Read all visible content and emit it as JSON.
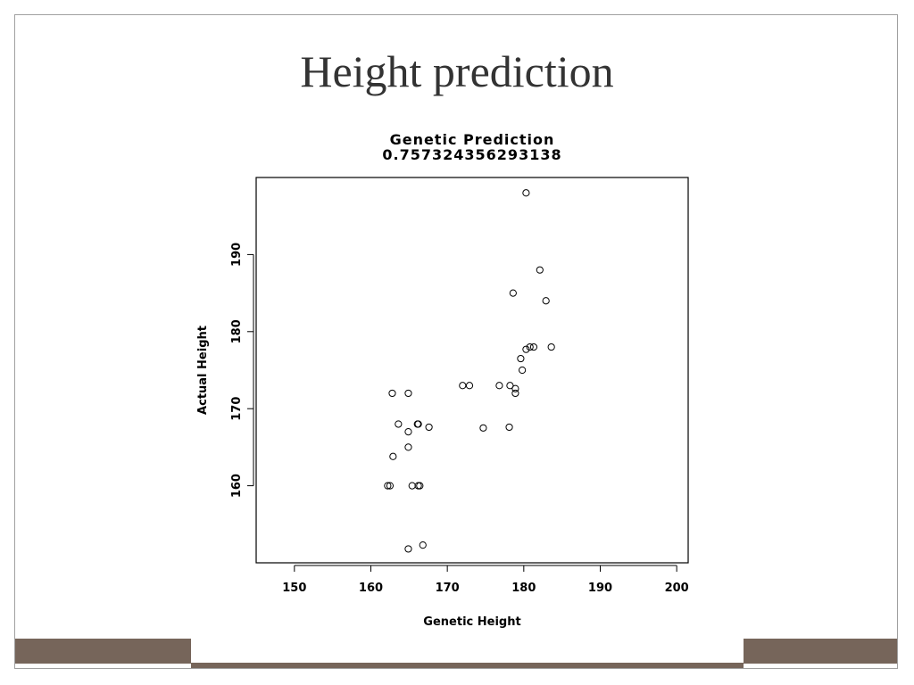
{
  "slide": {
    "title": "Height prediction"
  },
  "chart_data": {
    "type": "scatter",
    "title": "Genetic Prediction",
    "subtitle": "0.757324356293138",
    "xlabel": "Genetic Height",
    "ylabel": "Actual Height",
    "xlim": [
      145,
      201.5
    ],
    "ylim": [
      150,
      200
    ],
    "xticks": [
      150,
      160,
      170,
      180,
      190,
      200
    ],
    "yticks": [
      160,
      170,
      180,
      190
    ],
    "grid": false,
    "series": [
      {
        "points": [
          [
            180.3,
            198
          ],
          [
            182.1,
            188
          ],
          [
            178.6,
            185
          ],
          [
            182.9,
            184
          ],
          [
            183.6,
            178
          ],
          [
            181.3,
            178
          ],
          [
            180.8,
            178
          ],
          [
            180.3,
            177.7
          ],
          [
            179.6,
            176.5
          ],
          [
            179.8,
            175
          ],
          [
            172.0,
            173
          ],
          [
            172.9,
            173
          ],
          [
            176.8,
            173
          ],
          [
            178.2,
            173
          ],
          [
            178.9,
            172.6
          ],
          [
            178.9,
            172
          ],
          [
            162.8,
            172
          ],
          [
            164.9,
            172
          ],
          [
            163.6,
            168
          ],
          [
            166.1,
            168
          ],
          [
            166.2,
            168
          ],
          [
            167.6,
            167.6
          ],
          [
            174.7,
            167.5
          ],
          [
            178.1,
            167.6
          ],
          [
            164.9,
            167
          ],
          [
            164.9,
            165
          ],
          [
            162.9,
            163.8
          ],
          [
            162.2,
            160
          ],
          [
            162.5,
            160
          ],
          [
            165.4,
            160
          ],
          [
            166.2,
            160
          ],
          [
            166.4,
            160
          ],
          [
            166.8,
            152.3
          ],
          [
            164.9,
            151.8
          ]
        ]
      }
    ]
  }
}
